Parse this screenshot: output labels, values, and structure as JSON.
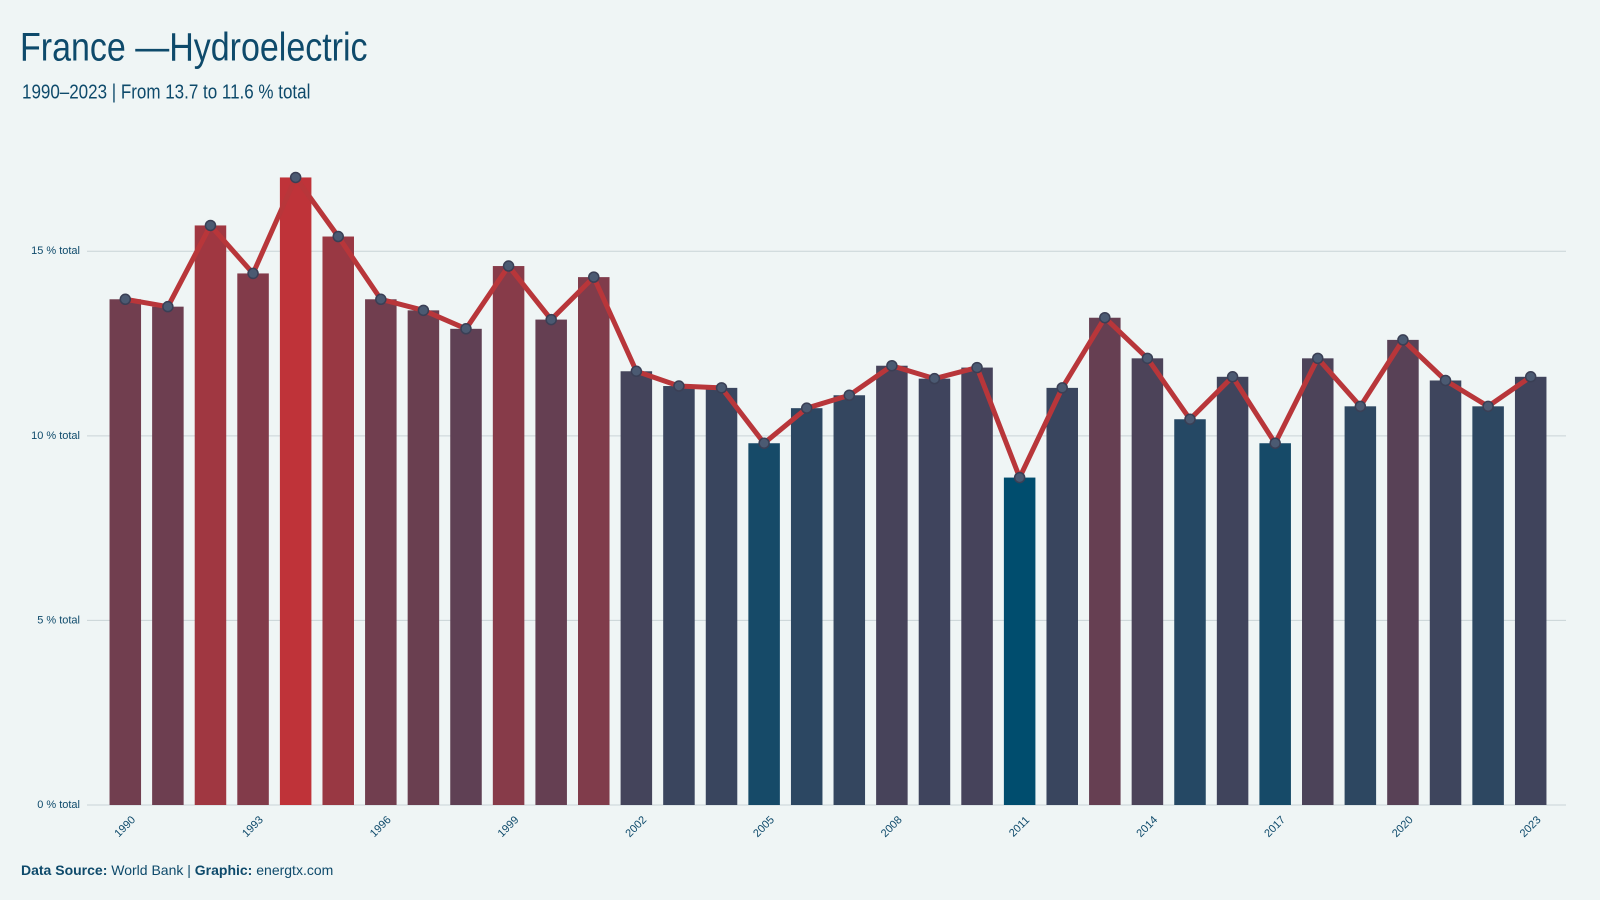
{
  "chart_data": {
    "type": "bar_line",
    "title": "France —Hydroelectric",
    "subtitle": "1990–2023 | From 13.7 to 11.6 % total",
    "footer": {
      "source_label": "Data Source:",
      "source": "World Bank",
      "graphic_label": "Graphic:",
      "graphic": "energtx.com",
      "separator": "|"
    },
    "categories": [
      "1990",
      null,
      null,
      "1993",
      null,
      null,
      "1996",
      null,
      null,
      "1999",
      null,
      null,
      "2002",
      null,
      null,
      "2005",
      null,
      null,
      "2008",
      null,
      null,
      "2011",
      null,
      null,
      "2014",
      null,
      null,
      "2017",
      null,
      null,
      "2020",
      null,
      null,
      "2023"
    ],
    "values": [
      13.7,
      13.5,
      15.7,
      14.4,
      17.0,
      15.4,
      13.7,
      13.4,
      12.9,
      14.6,
      13.15,
      14.3,
      11.75,
      11.35,
      11.3,
      9.8,
      10.75,
      11.1,
      11.9,
      11.55,
      11.85,
      8.87,
      11.3,
      13.2,
      12.1,
      10.45,
      11.6,
      9.8,
      12.1,
      10.8,
      12.6,
      11.5,
      10.8,
      11.6
    ],
    "low_color": "#004d6e",
    "high_color": "#bf3339",
    "line_color": "#b8363a",
    "ylim": [
      0,
      17.5
    ],
    "yticks": [
      {
        "value": 0,
        "label": "0 % total"
      },
      {
        "value": 5,
        "label": "5 % total"
      },
      {
        "value": 10,
        "label": "10 % total"
      },
      {
        "value": 15,
        "label": "15 % total"
      }
    ],
    "grid": true
  }
}
